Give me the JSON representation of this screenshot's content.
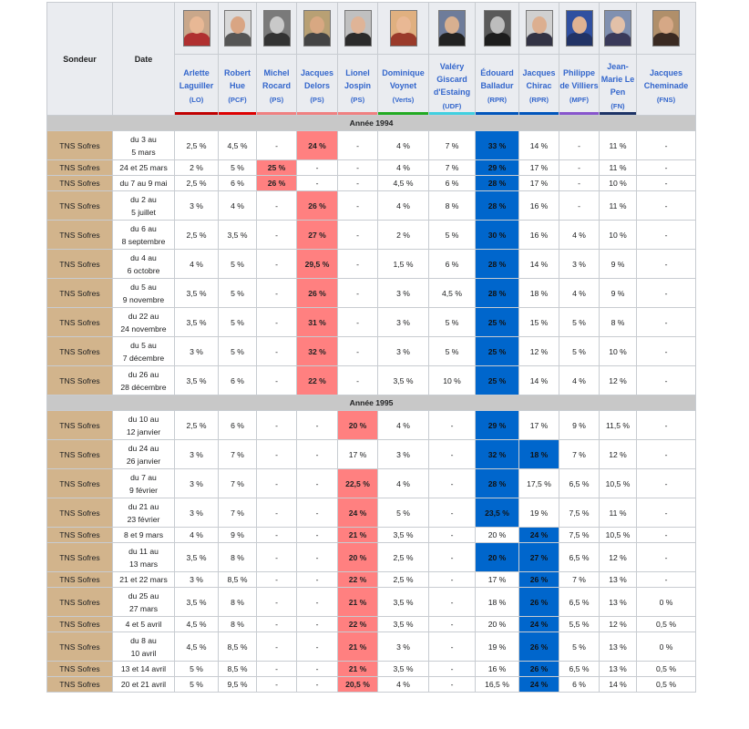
{
  "header": {
    "pollster": "Sondeur",
    "date": "Date"
  },
  "candidates": [
    {
      "name": "Arlette Laguiller",
      "party": "(LO)",
      "color": "#c00000",
      "photo_bg": "#c9a78a",
      "skin": "#e8b895",
      "cloth": "#b03030"
    },
    {
      "name": "Robert Hue",
      "party": "(PCF)",
      "color": "#dd0000",
      "photo_bg": "#d8d8d8",
      "skin": "#d9a583",
      "cloth": "#555555"
    },
    {
      "name": "Michel Rocard",
      "party": "(PS)",
      "color": "#f08080",
      "photo_bg": "#7a7a7a",
      "skin": "#c9c9c9",
      "cloth": "#333333"
    },
    {
      "name": "Jacques Delors",
      "party": "(PS)",
      "color": "#f08080",
      "photo_bg": "#b8a074",
      "skin": "#d8a882",
      "cloth": "#444444"
    },
    {
      "name": "Lionel Jospin",
      "party": "(PS)",
      "color": "#f08080",
      "photo_bg": "#c0c0c0",
      "skin": "#dfb497",
      "cloth": "#2b2b2b"
    },
    {
      "name": "Dominique Voynet",
      "party": "(Verts)",
      "color": "#22aa22",
      "photo_bg": "#e0b080",
      "skin": "#e9b894",
      "cloth": "#9a3a2a"
    },
    {
      "name": "Valéry Giscard d'Estaing",
      "party": "(UDF)",
      "color": "#40d0e0",
      "photo_bg": "#6e7c9a",
      "skin": "#d8b090",
      "cloth": "#222222"
    },
    {
      "name": "Édouard Balladur",
      "party": "(RPR)",
      "color": "#0055bb",
      "photo_bg": "#5a5a5a",
      "skin": "#bdbdbd",
      "cloth": "#1d1d1d"
    },
    {
      "name": "Jacques Chirac",
      "party": "(RPR)",
      "color": "#0055bb",
      "photo_bg": "#d0d0d0",
      "skin": "#dcaf90",
      "cloth": "#333344"
    },
    {
      "name": "Philippe de Villiers",
      "party": "(MPF)",
      "color": "#8855cc",
      "photo_bg": "#3050a0",
      "skin": "#e0b292",
      "cloth": "#223366"
    },
    {
      "name": "Jean-Marie Le Pen",
      "party": "(FN)",
      "color": "#1d3366",
      "photo_bg": "#8090b0",
      "skin": "#e2c0a8",
      "cloth": "#3a3a5a"
    },
    {
      "name": "Jacques Cheminade",
      "party": "(FNS)",
      "color": "#eaecf0",
      "photo_bg": "#b08f6a",
      "skin": "#d6a886",
      "cloth": "#3a2a22"
    }
  ],
  "sections": [
    {
      "year": "Année 1994",
      "rows": [
        {
          "pollster": "TNS Sofres",
          "date": [
            "du 3 au",
            "5 mars"
          ],
          "values": [
            "2,5 %",
            "4,5 %",
            "-",
            "24 %",
            "-",
            "4 %",
            "7 %",
            "33 %",
            "14 %",
            "-",
            "11 %",
            "-"
          ],
          "lead_ps": 3,
          "lead_rpr": 7
        },
        {
          "pollster": "TNS Sofres",
          "date": [
            "24 et 25 mars"
          ],
          "values": [
            "2 %",
            "5 %",
            "25 %",
            "-",
            "-",
            "4 %",
            "7 %",
            "29 %",
            "17 %",
            "-",
            "11 %",
            "-"
          ],
          "lead_ps": 2,
          "lead_rpr": 7
        },
        {
          "pollster": "TNS Sofres",
          "date": [
            "du 7 au 9 mai"
          ],
          "values": [
            "2,5 %",
            "6 %",
            "26 %",
            "-",
            "-",
            "4,5 %",
            "6 %",
            "28 %",
            "17 %",
            "-",
            "10 %",
            "-"
          ],
          "lead_ps": 2,
          "lead_rpr": 7
        },
        {
          "pollster": "TNS Sofres",
          "date": [
            "du 2 au",
            "5 juillet"
          ],
          "values": [
            "3 %",
            "4 %",
            "-",
            "26 %",
            "-",
            "4 %",
            "8 %",
            "28 %",
            "16 %",
            "-",
            "11 %",
            "-"
          ],
          "lead_ps": 3,
          "lead_rpr": 7
        },
        {
          "pollster": "TNS Sofres",
          "date": [
            "du 6 au",
            "8 septembre"
          ],
          "values": [
            "2,5 %",
            "3,5 %",
            "-",
            "27 %",
            "-",
            "2 %",
            "5 %",
            "30 %",
            "16 %",
            "4 %",
            "10 %",
            "-"
          ],
          "lead_ps": 3,
          "lead_rpr": 7
        },
        {
          "pollster": "TNS Sofres",
          "date": [
            "du 4 au",
            "6 octobre"
          ],
          "values": [
            "4 %",
            "5 %",
            "-",
            "29,5 %",
            "-",
            "1,5 %",
            "6 %",
            "28 %",
            "14 %",
            "3 %",
            "9 %",
            "-"
          ],
          "lead_ps": 3,
          "lead_rpr": 7
        },
        {
          "pollster": "TNS Sofres",
          "date": [
            "du 5 au",
            "9 novembre"
          ],
          "values": [
            "3,5 %",
            "5 %",
            "-",
            "26 %",
            "-",
            "3 %",
            "4,5 %",
            "28 %",
            "18 %",
            "4 %",
            "9 %",
            "-"
          ],
          "lead_ps": 3,
          "lead_rpr": 7
        },
        {
          "pollster": "TNS Sofres",
          "date": [
            "du 22 au",
            "24 novembre"
          ],
          "values": [
            "3,5 %",
            "5 %",
            "-",
            "31 %",
            "-",
            "3 %",
            "5 %",
            "25 %",
            "15 %",
            "5 %",
            "8 %",
            "-"
          ],
          "lead_ps": 3,
          "lead_rpr": 7
        },
        {
          "pollster": "TNS Sofres",
          "date": [
            "du 5 au",
            "7 décembre"
          ],
          "values": [
            "3 %",
            "5 %",
            "-",
            "32 %",
            "-",
            "3 %",
            "5 %",
            "25 %",
            "12 %",
            "5 %",
            "10 %",
            "-"
          ],
          "lead_ps": 3,
          "lead_rpr": 7
        },
        {
          "pollster": "TNS Sofres",
          "date": [
            "du 26 au",
            "28 décembre"
          ],
          "values": [
            "3,5 %",
            "6 %",
            "-",
            "22 %",
            "-",
            "3,5 %",
            "10 %",
            "25 %",
            "14 %",
            "4 %",
            "12 %",
            "-"
          ],
          "lead_ps": 3,
          "lead_rpr": 7
        }
      ]
    },
    {
      "year": "Année 1995",
      "rows": [
        {
          "pollster": "TNS Sofres",
          "date": [
            "du 10 au",
            "12 janvier"
          ],
          "values": [
            "2,5 %",
            "6 %",
            "-",
            "-",
            "20 %",
            "4 %",
            "-",
            "29 %",
            "17 %",
            "9 %",
            "11,5 %",
            "-"
          ],
          "lead_ps": 4,
          "lead_rpr": 7
        },
        {
          "pollster": "TNS Sofres",
          "date": [
            "du 24 au",
            "26 janvier"
          ],
          "values": [
            "3 %",
            "7 %",
            "-",
            "-",
            "17 %",
            "3 %",
            "-",
            "32 %",
            "18 %",
            "7 %",
            "12 %",
            "-"
          ],
          "lead_ps": -1,
          "lead_rpr": [
            7,
            8
          ]
        },
        {
          "pollster": "TNS Sofres",
          "date": [
            "du 7 au",
            "9 février"
          ],
          "values": [
            "3 %",
            "7 %",
            "-",
            "-",
            "22,5 %",
            "4 %",
            "-",
            "28 %",
            "17,5 %",
            "6,5 %",
            "10,5 %",
            "-"
          ],
          "lead_ps": 4,
          "lead_rpr": 7
        },
        {
          "pollster": "TNS Sofres",
          "date": [
            "du 21 au",
            "23 février"
          ],
          "values": [
            "3 %",
            "7 %",
            "-",
            "-",
            "24 %",
            "5 %",
            "-",
            "23,5 %",
            "19 %",
            "7,5 %",
            "11 %",
            "-"
          ],
          "lead_ps": 4,
          "lead_rpr": 7
        },
        {
          "pollster": "TNS Sofres",
          "date": [
            "8 et 9 mars"
          ],
          "values": [
            "4 %",
            "9 %",
            "-",
            "-",
            "21 %",
            "3,5 %",
            "-",
            "20 %",
            "24 %",
            "7,5 %",
            "10,5 %",
            "-"
          ],
          "lead_ps": 4,
          "lead_rpr": 8
        },
        {
          "pollster": "TNS Sofres",
          "date": [
            "du 11 au",
            "13 mars"
          ],
          "values": [
            "3,5 %",
            "8 %",
            "-",
            "-",
            "20 %",
            "2,5 %",
            "-",
            "20 %",
            "27 %",
            "6,5 %",
            "12 %",
            "-"
          ],
          "lead_ps": 4,
          "lead_rpr": [
            7,
            8
          ]
        },
        {
          "pollster": "TNS Sofres",
          "date": [
            "21 et 22 mars"
          ],
          "values": [
            "3 %",
            "8,5 %",
            "-",
            "-",
            "22 %",
            "2,5 %",
            "-",
            "17 %",
            "26 %",
            "7 %",
            "13 %",
            "-"
          ],
          "lead_ps": 4,
          "lead_rpr": 8
        },
        {
          "pollster": "TNS Sofres",
          "date": [
            "du 25 au",
            "27 mars"
          ],
          "values": [
            "3,5 %",
            "8 %",
            "-",
            "-",
            "21 %",
            "3,5 %",
            "-",
            "18 %",
            "26 %",
            "6,5 %",
            "13 %",
            "0 %"
          ],
          "lead_ps": 4,
          "lead_rpr": 8
        },
        {
          "pollster": "TNS Sofres",
          "date": [
            "4 et 5 avril"
          ],
          "values": [
            "4,5 %",
            "8 %",
            "-",
            "-",
            "22 %",
            "3,5 %",
            "-",
            "20 %",
            "24 %",
            "5,5 %",
            "12 %",
            "0,5 %"
          ],
          "lead_ps": 4,
          "lead_rpr": 8
        },
        {
          "pollster": "TNS Sofres",
          "date": [
            "du 8 au",
            "10 avril"
          ],
          "values": [
            "4,5 %",
            "8,5 %",
            "-",
            "-",
            "21 %",
            "3 %",
            "-",
            "19 %",
            "26 %",
            "5 %",
            "13 %",
            "0 %"
          ],
          "lead_ps": 4,
          "lead_rpr": 8
        },
        {
          "pollster": "TNS Sofres",
          "date": [
            "13 et 14 avril"
          ],
          "values": [
            "5 %",
            "8,5 %",
            "-",
            "-",
            "21 %",
            "3,5 %",
            "-",
            "16 %",
            "26 %",
            "6,5 %",
            "13 %",
            "0,5 %"
          ],
          "lead_ps": 4,
          "lead_rpr": 8
        },
        {
          "pollster": "TNS Sofres",
          "date": [
            "20 et 21 avril"
          ],
          "values": [
            "5 %",
            "9,5 %",
            "-",
            "-",
            "20,5 %",
            "4 %",
            "-",
            "16,5 %",
            "24 %",
            "6 %",
            "14 %",
            "0,5 %"
          ],
          "lead_ps": 4,
          "lead_rpr": 8
        }
      ]
    }
  ],
  "colors": {
    "pollster_bg": "#d2b48c",
    "ps_lead": "#ff8080",
    "rpr_lead": "#0066cc",
    "header_bg": "#eaecf0",
    "year_bg": "#c8c8c8",
    "link": "#3366cc"
  }
}
